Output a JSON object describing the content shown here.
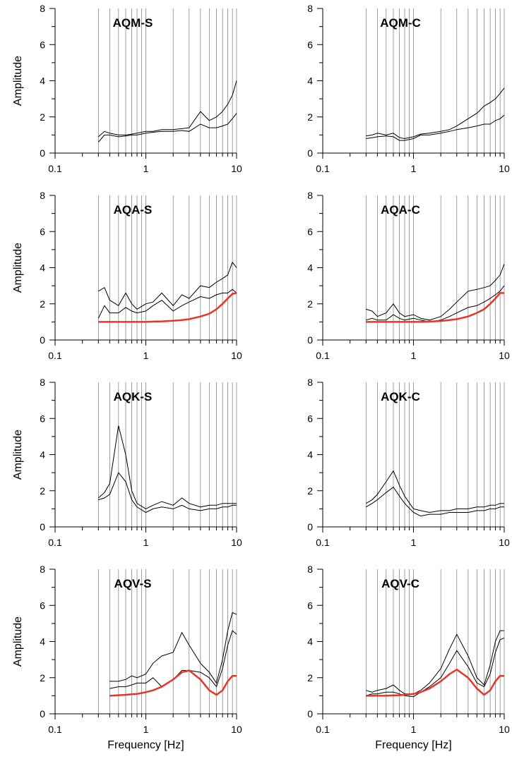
{
  "chart_data": [
    {
      "type": "line",
      "title": "AQM-S",
      "y_label": "Amplitude",
      "log_x": true,
      "xlim": [
        0.1,
        10
      ],
      "ylim": [
        0,
        8
      ],
      "xticks": [
        0.1,
        1,
        10
      ],
      "yticks": [
        0,
        2,
        4,
        6,
        8
      ],
      "xgrid": [
        0.3,
        0.4,
        0.5,
        0.6,
        0.7,
        0.8,
        0.9,
        1,
        2,
        3,
        4,
        5,
        6,
        7,
        8,
        9
      ],
      "xminor": [
        0.2,
        0.3,
        0.4,
        0.5,
        0.6,
        0.7,
        0.8,
        0.9,
        2,
        3,
        4,
        5,
        6,
        7,
        8,
        9
      ],
      "yminor": [
        1,
        3,
        5,
        7
      ],
      "x": [
        0.3,
        0.35,
        0.4,
        0.5,
        0.6,
        0.7,
        0.8,
        1,
        1.2,
        1.5,
        2,
        2.5,
        3,
        4,
        5,
        6,
        7,
        8,
        9,
        10
      ],
      "series": [
        {
          "color": "#000000",
          "values": [
            0.6,
            1.0,
            1.0,
            0.9,
            0.95,
            1.0,
            1.0,
            1.1,
            1.15,
            1.2,
            1.2,
            1.25,
            1.2,
            1.6,
            1.4,
            1.4,
            1.5,
            1.6,
            1.9,
            2.2
          ]
        },
        {
          "color": "#000000",
          "values": [
            0.9,
            1.2,
            1.1,
            1.0,
            1.0,
            1.05,
            1.1,
            1.2,
            1.2,
            1.3,
            1.3,
            1.35,
            1.4,
            2.3,
            1.8,
            2.0,
            2.3,
            2.7,
            3.2,
            4.0
          ]
        }
      ]
    },
    {
      "type": "line",
      "title": "AQM-C",
      "log_x": true,
      "xlim": [
        0.1,
        10
      ],
      "ylim": [
        0,
        8
      ],
      "xticks": [
        0.1,
        1,
        10
      ],
      "yticks": [
        0,
        2,
        4,
        6,
        8
      ],
      "xgrid": [
        0.3,
        0.4,
        0.5,
        0.6,
        0.7,
        0.8,
        0.9,
        1,
        2,
        3,
        4,
        5,
        6,
        7,
        8,
        9
      ],
      "xminor": [
        0.2,
        0.3,
        0.4,
        0.5,
        0.6,
        0.7,
        0.8,
        0.9,
        2,
        3,
        4,
        5,
        6,
        7,
        8,
        9
      ],
      "yminor": [
        1,
        3,
        5,
        7
      ],
      "x": [
        0.3,
        0.35,
        0.4,
        0.5,
        0.6,
        0.7,
        0.8,
        1,
        1.2,
        1.5,
        2,
        2.5,
        3,
        4,
        5,
        6,
        7,
        8,
        9,
        10
      ],
      "series": [
        {
          "color": "#000000",
          "values": [
            0.8,
            0.85,
            0.9,
            0.95,
            0.9,
            0.7,
            0.7,
            0.8,
            1.0,
            1.0,
            1.1,
            1.2,
            1.3,
            1.4,
            1.5,
            1.6,
            1.6,
            1.8,
            1.9,
            2.1
          ]
        },
        {
          "color": "#000000",
          "values": [
            0.95,
            1.0,
            1.1,
            1.0,
            1.1,
            0.85,
            0.8,
            0.9,
            1.05,
            1.1,
            1.2,
            1.3,
            1.5,
            1.9,
            2.2,
            2.6,
            2.8,
            3.0,
            3.3,
            3.6
          ]
        }
      ]
    },
    {
      "type": "line",
      "title": "AQA-S",
      "y_label": "Amplitude",
      "log_x": true,
      "xlim": [
        0.1,
        10
      ],
      "ylim": [
        0,
        8
      ],
      "xticks": [
        0.1,
        1,
        10
      ],
      "yticks": [
        0,
        2,
        4,
        6,
        8
      ],
      "xgrid": [
        0.3,
        0.4,
        0.5,
        0.6,
        0.7,
        0.8,
        0.9,
        1,
        2,
        3,
        4,
        5,
        6,
        7,
        8,
        9
      ],
      "xminor": [
        0.2,
        0.3,
        0.4,
        0.5,
        0.6,
        0.7,
        0.8,
        0.9,
        2,
        3,
        4,
        5,
        6,
        7,
        8,
        9
      ],
      "yminor": [
        1,
        3,
        5,
        7
      ],
      "x": [
        0.3,
        0.35,
        0.4,
        0.5,
        0.6,
        0.7,
        0.8,
        1,
        1.2,
        1.5,
        2,
        2.5,
        3,
        4,
        5,
        6,
        7,
        8,
        9,
        10
      ],
      "series": [
        {
          "color": "#000000",
          "values": [
            1.2,
            1.9,
            1.5,
            1.5,
            1.8,
            1.6,
            1.5,
            1.6,
            1.9,
            2.2,
            1.6,
            1.9,
            2.1,
            2.4,
            2.3,
            2.5,
            2.6,
            2.6,
            2.8,
            2.6
          ]
        },
        {
          "color": "#000000",
          "values": [
            2.7,
            2.9,
            2.2,
            1.9,
            2.6,
            2.0,
            1.7,
            2.0,
            2.1,
            2.6,
            1.9,
            2.5,
            2.3,
            3.0,
            2.9,
            3.2,
            3.4,
            3.6,
            4.3,
            4.0
          ]
        },
        {
          "color": "#e8352a",
          "values": [
            1,
            1,
            1,
            1,
            1,
            1,
            1,
            1,
            1.02,
            1.03,
            1.06,
            1.1,
            1.15,
            1.3,
            1.45,
            1.7,
            2.0,
            2.3,
            2.55,
            2.6
          ]
        }
      ]
    },
    {
      "type": "line",
      "title": "AQA-C",
      "log_x": true,
      "xlim": [
        0.1,
        10
      ],
      "ylim": [
        0,
        8
      ],
      "xticks": [
        0.1,
        1,
        10
      ],
      "yticks": [
        0,
        2,
        4,
        6,
        8
      ],
      "xgrid": [
        0.3,
        0.4,
        0.5,
        0.6,
        0.7,
        0.8,
        0.9,
        1,
        2,
        3,
        4,
        5,
        6,
        7,
        8,
        9
      ],
      "xminor": [
        0.2,
        0.3,
        0.4,
        0.5,
        0.6,
        0.7,
        0.8,
        0.9,
        2,
        3,
        4,
        5,
        6,
        7,
        8,
        9
      ],
      "yminor": [
        1,
        3,
        5,
        7
      ],
      "x": [
        0.3,
        0.35,
        0.4,
        0.5,
        0.6,
        0.7,
        0.8,
        1,
        1.2,
        1.5,
        2,
        2.5,
        3,
        4,
        5,
        6,
        7,
        8,
        9,
        10
      ],
      "series": [
        {
          "color": "#000000",
          "values": [
            1.1,
            1.2,
            1.1,
            1.1,
            1.4,
            1.2,
            1.1,
            1.2,
            1.1,
            1.0,
            1.1,
            1.3,
            1.5,
            1.8,
            1.9,
            2.1,
            2.3,
            2.5,
            2.7,
            3.0
          ]
        },
        {
          "color": "#000000",
          "values": [
            1.7,
            1.6,
            1.3,
            1.5,
            2.0,
            1.5,
            1.3,
            1.4,
            1.2,
            1.1,
            1.3,
            1.7,
            2.1,
            2.7,
            2.8,
            2.9,
            3.0,
            3.3,
            3.6,
            4.2
          ]
        },
        {
          "color": "#e8352a",
          "values": [
            1,
            1,
            1,
            1,
            1,
            1,
            1,
            1,
            1,
            1.02,
            1.05,
            1.1,
            1.15,
            1.3,
            1.5,
            1.7,
            2.0,
            2.3,
            2.6,
            2.6
          ]
        }
      ]
    },
    {
      "type": "line",
      "title": "AQK-S",
      "y_label": "Amplitude",
      "log_x": true,
      "xlim": [
        0.1,
        10
      ],
      "ylim": [
        0,
        8
      ],
      "xticks": [
        0.1,
        1,
        10
      ],
      "yticks": [
        0,
        2,
        4,
        6,
        8
      ],
      "xgrid": [
        0.3,
        0.4,
        0.5,
        0.6,
        0.7,
        0.8,
        0.9,
        1,
        2,
        3,
        4,
        5,
        6,
        7,
        8,
        9
      ],
      "xminor": [
        0.2,
        0.3,
        0.4,
        0.5,
        0.6,
        0.7,
        0.8,
        0.9,
        2,
        3,
        4,
        5,
        6,
        7,
        8,
        9
      ],
      "yminor": [
        1,
        3,
        5,
        7
      ],
      "x": [
        0.3,
        0.35,
        0.4,
        0.5,
        0.6,
        0.7,
        0.8,
        1,
        1.2,
        1.5,
        2,
        2.5,
        3,
        4,
        5,
        6,
        7,
        8,
        9,
        10
      ],
      "series": [
        {
          "color": "#000000",
          "values": [
            1.5,
            1.6,
            1.8,
            3.0,
            2.5,
            1.5,
            1.1,
            0.8,
            1.0,
            1.1,
            1.0,
            1.2,
            1.0,
            0.9,
            1.0,
            1.0,
            1.1,
            1.1,
            1.2,
            1.2
          ]
        },
        {
          "color": "#000000",
          "values": [
            1.6,
            1.9,
            2.4,
            5.6,
            4.0,
            2.0,
            1.3,
            1.0,
            1.2,
            1.4,
            1.2,
            1.6,
            1.3,
            1.1,
            1.2,
            1.2,
            1.3,
            1.3,
            1.3,
            1.3
          ]
        }
      ]
    },
    {
      "type": "line",
      "title": "AQK-C",
      "log_x": true,
      "xlim": [
        0.1,
        10
      ],
      "ylim": [
        0,
        8
      ],
      "xticks": [
        0.1,
        1,
        10
      ],
      "yticks": [
        0,
        2,
        4,
        6,
        8
      ],
      "xgrid": [
        0.3,
        0.4,
        0.5,
        0.6,
        0.7,
        0.8,
        0.9,
        1,
        2,
        3,
        4,
        5,
        6,
        7,
        8,
        9
      ],
      "xminor": [
        0.2,
        0.3,
        0.4,
        0.5,
        0.6,
        0.7,
        0.8,
        0.9,
        2,
        3,
        4,
        5,
        6,
        7,
        8,
        9
      ],
      "yminor": [
        1,
        3,
        5,
        7
      ],
      "x": [
        0.3,
        0.35,
        0.4,
        0.5,
        0.6,
        0.7,
        0.8,
        1,
        1.2,
        1.5,
        2,
        2.5,
        3,
        4,
        5,
        6,
        7,
        8,
        9,
        10
      ],
      "series": [
        {
          "color": "#000000",
          "values": [
            1.1,
            1.3,
            1.5,
            1.9,
            2.2,
            1.7,
            1.3,
            0.8,
            0.6,
            0.7,
            0.7,
            0.8,
            0.8,
            0.8,
            0.9,
            0.9,
            1.0,
            1.0,
            1.1,
            1.1
          ]
        },
        {
          "color": "#000000",
          "values": [
            1.3,
            1.5,
            1.8,
            2.5,
            3.1,
            2.3,
            1.7,
            1.0,
            0.9,
            0.8,
            0.9,
            0.9,
            1.0,
            1.0,
            1.1,
            1.1,
            1.2,
            1.2,
            1.3,
            1.3
          ]
        }
      ]
    },
    {
      "type": "line",
      "title": "AQV-S",
      "y_label": "Amplitude",
      "x_label": "Frequency [Hz]",
      "log_x": true,
      "xlim": [
        0.1,
        10
      ],
      "ylim": [
        0,
        8
      ],
      "xticks": [
        0.1,
        1,
        10
      ],
      "yticks": [
        0,
        2,
        4,
        6,
        8
      ],
      "xgrid": [
        0.3,
        0.4,
        0.5,
        0.6,
        0.7,
        0.8,
        0.9,
        1,
        2,
        3,
        4,
        5,
        6,
        7,
        8,
        9
      ],
      "xminor": [
        0.2,
        0.3,
        0.4,
        0.5,
        0.6,
        0.7,
        0.8,
        0.9,
        2,
        3,
        4,
        5,
        6,
        7,
        8,
        9
      ],
      "yminor": [
        1,
        3,
        5,
        7
      ],
      "x": [
        0.3,
        0.35,
        0.4,
        0.5,
        0.6,
        0.7,
        0.8,
        1,
        1.2,
        1.5,
        2,
        2.5,
        3,
        4,
        5,
        6,
        7,
        8,
        9,
        10
      ],
      "series": [
        {
          "color": "#000000",
          "values": [
            null,
            null,
            1.4,
            1.5,
            1.5,
            1.6,
            1.7,
            1.7,
            2.0,
            1.5,
            1.9,
            2.4,
            2.4,
            2.3,
            2.0,
            1.5,
            2.5,
            3.8,
            4.6,
            4.4
          ]
        },
        {
          "color": "#000000",
          "values": [
            null,
            null,
            1.8,
            1.8,
            1.9,
            2.1,
            2.0,
            2.2,
            2.8,
            3.2,
            3.4,
            4.5,
            3.8,
            2.8,
            2.3,
            1.7,
            3.0,
            4.6,
            5.6,
            5.5
          ]
        },
        {
          "color": "#e8352a",
          "values": [
            null,
            null,
            1.0,
            1.03,
            1.05,
            1.08,
            1.1,
            1.2,
            1.3,
            1.5,
            1.9,
            2.3,
            2.4,
            1.9,
            1.3,
            1.05,
            1.3,
            1.8,
            2.1,
            2.1
          ]
        }
      ]
    },
    {
      "type": "line",
      "title": "AQV-C",
      "x_label": "Frequency [Hz]",
      "log_x": true,
      "xlim": [
        0.1,
        10
      ],
      "ylim": [
        0,
        8
      ],
      "xticks": [
        0.1,
        1,
        10
      ],
      "yticks": [
        0,
        2,
        4,
        6,
        8
      ],
      "xgrid": [
        0.3,
        0.4,
        0.5,
        0.6,
        0.7,
        0.8,
        0.9,
        1,
        2,
        3,
        4,
        5,
        6,
        7,
        8,
        9
      ],
      "xminor": [
        0.2,
        0.3,
        0.4,
        0.5,
        0.6,
        0.7,
        0.8,
        0.9,
        2,
        3,
        4,
        5,
        6,
        7,
        8,
        9
      ],
      "yminor": [
        1,
        3,
        5,
        7
      ],
      "x": [
        0.3,
        0.35,
        0.4,
        0.5,
        0.6,
        0.7,
        0.8,
        1,
        1.2,
        1.5,
        2,
        2.5,
        3,
        4,
        5,
        6,
        7,
        8,
        9,
        10
      ],
      "series": [
        {
          "color": "#000000",
          "values": [
            1.0,
            1.1,
            1.1,
            1.2,
            1.2,
            1.1,
            1.0,
            0.95,
            1.2,
            1.5,
            2.0,
            2.8,
            3.5,
            2.6,
            1.7,
            1.5,
            2.2,
            3.4,
            4.1,
            4.2
          ]
        },
        {
          "color": "#000000",
          "values": [
            1.3,
            1.2,
            1.3,
            1.4,
            1.6,
            1.3,
            1.1,
            1.1,
            1.3,
            1.7,
            2.5,
            3.6,
            4.4,
            3.2,
            2.0,
            1.6,
            2.7,
            4.0,
            4.6,
            4.6
          ]
        },
        {
          "color": "#e8352a",
          "values": [
            1,
            1,
            1,
            1,
            1.02,
            1.03,
            1.05,
            1.1,
            1.2,
            1.4,
            1.8,
            2.2,
            2.45,
            2.0,
            1.4,
            1.05,
            1.3,
            1.8,
            2.1,
            2.1
          ]
        }
      ]
    }
  ]
}
